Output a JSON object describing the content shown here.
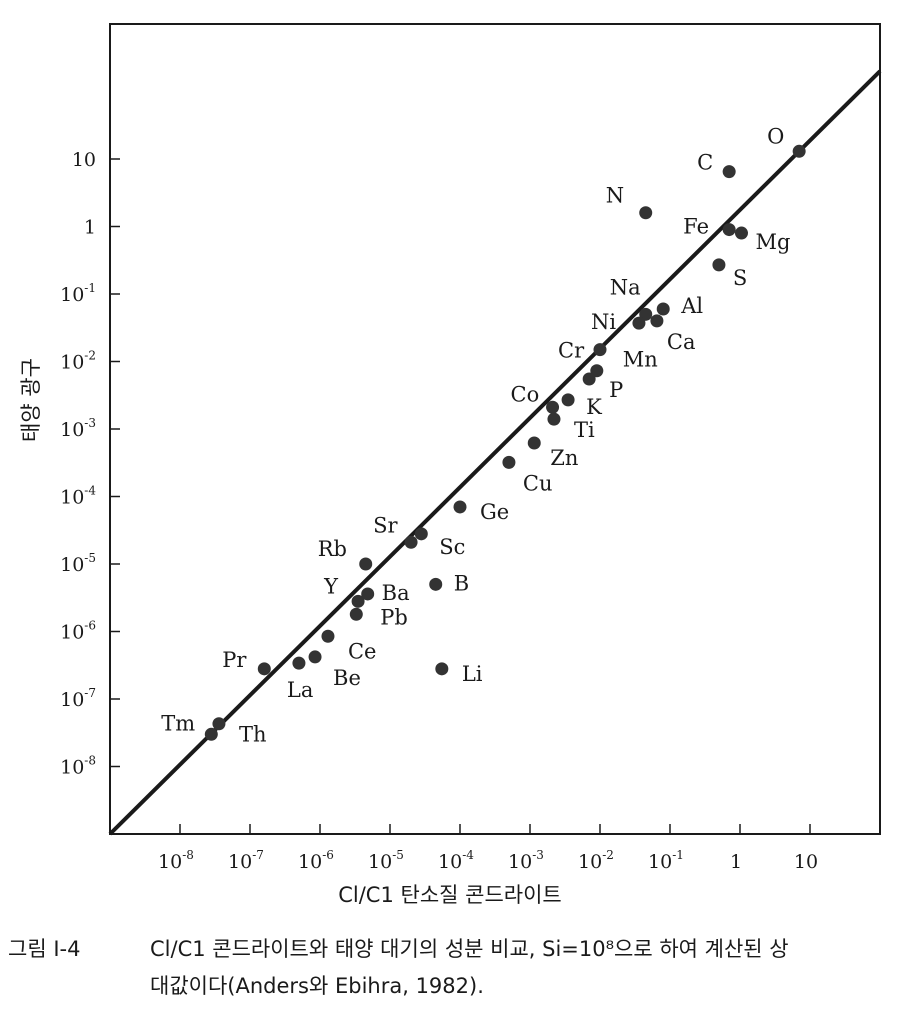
{
  "chart_data": {
    "type": "scatter",
    "x_scale": "log",
    "y_scale": "log",
    "xlabel": "Cl/C1 탄소질 콘드라이트",
    "ylabel": "태양 광구",
    "xlim": [
      1e-09,
      100
    ],
    "ylim": [
      1e-09,
      1000
    ],
    "x_ticks": [
      {
        "v": 1e-08,
        "m": "10",
        "e": "-8"
      },
      {
        "v": 1e-07,
        "m": "10",
        "e": "-7"
      },
      {
        "v": 1e-06,
        "m": "10",
        "e": "-6"
      },
      {
        "v": 1e-05,
        "m": "10",
        "e": "-5"
      },
      {
        "v": 0.0001,
        "m": "10",
        "e": "-4"
      },
      {
        "v": 0.001,
        "m": "10",
        "e": "-3"
      },
      {
        "v": 0.01,
        "m": "10",
        "e": "-2"
      },
      {
        "v": 0.1,
        "m": "10",
        "e": "-1"
      },
      {
        "v": 1,
        "m": "1",
        "e": ""
      },
      {
        "v": 10,
        "m": "10",
        "e": ""
      }
    ],
    "y_ticks": [
      {
        "v": 10,
        "m": "10",
        "e": ""
      },
      {
        "v": 1,
        "m": "1",
        "e": ""
      },
      {
        "v": 0.1,
        "m": "10",
        "e": "-1"
      },
      {
        "v": 0.01,
        "m": "10",
        "e": "-2"
      },
      {
        "v": 0.001,
        "m": "10",
        "e": "-3"
      },
      {
        "v": 0.0001,
        "m": "10",
        "e": "-4"
      },
      {
        "v": 1e-05,
        "m": "10",
        "e": "-5"
      },
      {
        "v": 1e-06,
        "m": "10",
        "e": "-6"
      },
      {
        "v": 1e-07,
        "m": "10",
        "e": "-7"
      },
      {
        "v": 1e-08,
        "m": "10",
        "e": "-8"
      }
    ],
    "reference_line": {
      "x": [
        1e-09,
        100
      ],
      "y": [
        1e-09,
        200
      ]
    },
    "points": [
      {
        "label": "O",
        "x": 7,
        "y": 13,
        "ldx": -32,
        "ldy": -8
      },
      {
        "label": "C",
        "x": 0.7,
        "y": 6.5,
        "ldx": -32,
        "ldy": -2
      },
      {
        "label": "N",
        "x": 0.045,
        "y": 1.6,
        "ldx": -40,
        "ldy": -10
      },
      {
        "label": "Fe",
        "x": 0.7,
        "y": 0.9,
        "ldx": -46,
        "ldy": 4
      },
      {
        "label": "Mg",
        "x": 1.05,
        "y": 0.8,
        "ldx": 14,
        "ldy": 16
      },
      {
        "label": "S",
        "x": 0.5,
        "y": 0.27,
        "ldx": 14,
        "ldy": 20
      },
      {
        "label": "Na",
        "x": 0.045,
        "y": 0.05,
        "ldx": -36,
        "ldy": -20
      },
      {
        "label": "Al",
        "x": 0.08,
        "y": 0.06,
        "ldx": 18,
        "ldy": 4
      },
      {
        "label": "Ni",
        "x": 0.036,
        "y": 0.037,
        "ldx": -48,
        "ldy": 6
      },
      {
        "label": "Ca",
        "x": 0.065,
        "y": 0.04,
        "ldx": 10,
        "ldy": 28
      },
      {
        "label": "Cr",
        "x": 0.01,
        "y": 0.015,
        "ldx": -42,
        "ldy": 8
      },
      {
        "label": "Mn",
        "x": 0.009,
        "y": 0.0073,
        "ldx": 26,
        "ldy": -4
      },
      {
        "label": "P",
        "x": 0.007,
        "y": 0.0055,
        "ldx": 20,
        "ldy": 18
      },
      {
        "label": "K",
        "x": 0.0035,
        "y": 0.0027,
        "ldx": 18,
        "ldy": 14
      },
      {
        "label": "Co",
        "x": 0.0021,
        "y": 0.0021,
        "ldx": -42,
        "ldy": -6
      },
      {
        "label": "Ti",
        "x": 0.0022,
        "y": 0.0014,
        "ldx": 20,
        "ldy": 18
      },
      {
        "label": "Zn",
        "x": 0.00115,
        "y": 0.00062,
        "ldx": 16,
        "ldy": 22
      },
      {
        "label": "Cu",
        "x": 0.0005,
        "y": 0.00032,
        "ldx": 14,
        "ldy": 28
      },
      {
        "label": "Ge",
        "x": 0.0001,
        "y": 7e-05,
        "ldx": 20,
        "ldy": 12
      },
      {
        "label": "Sr",
        "x": 2e-05,
        "y": 2.1e-05,
        "ldx": -38,
        "ldy": -10
      },
      {
        "label": "Sc",
        "x": 2.8e-05,
        "y": 2.8e-05,
        "ldx": 18,
        "ldy": 20
      },
      {
        "label": "Rb",
        "x": 4.5e-06,
        "y": 1e-05,
        "ldx": -48,
        "ldy": -8
      },
      {
        "label": "B",
        "x": 4.5e-05,
        "y": 5e-06,
        "ldx": 18,
        "ldy": 6
      },
      {
        "label": "Y",
        "x": 3.5e-06,
        "y": 2.8e-06,
        "ldx": -34,
        "ldy": -8
      },
      {
        "label": "Ba",
        "x": 4.8e-06,
        "y": 3.6e-06,
        "ldx": 14,
        "ldy": 6
      },
      {
        "label": "Pb",
        "x": 3.3e-06,
        "y": 1.8e-06,
        "ldx": 24,
        "ldy": 10
      },
      {
        "label": "Ce",
        "x": 1.3e-06,
        "y": 8.5e-07,
        "ldx": 20,
        "ldy": 22
      },
      {
        "label": "Be",
        "x": 8.5e-07,
        "y": 4.2e-07,
        "ldx": 18,
        "ldy": 28
      },
      {
        "label": "La",
        "x": 5e-07,
        "y": 3.4e-07,
        "ldx": -12,
        "ldy": 34
      },
      {
        "label": "Pr",
        "x": 1.6e-07,
        "y": 2.8e-07,
        "ldx": -42,
        "ldy": -2
      },
      {
        "label": "Li",
        "x": 5.5e-05,
        "y": 2.8e-07,
        "ldx": 20,
        "ldy": 12
      },
      {
        "label": "Tm",
        "x": 2.8e-08,
        "y": 3e-08,
        "ldx": -50,
        "ldy": -4
      },
      {
        "label": "Th",
        "x": 3.6e-08,
        "y": 4.3e-08,
        "ldx": 20,
        "ldy": 18
      }
    ]
  },
  "caption": {
    "label": "그림 I-4",
    "text_line1": "Cl/C1 콘드라이트와 태양 대기의 성분 비교, Si=10⁸으로 하여 계산된 상",
    "text_line2": "대값이다(Anders와 Ebihra, 1982)."
  },
  "colors": {
    "ink": "#1a1a1a",
    "marker": "#333333",
    "background": "#ffffff"
  }
}
